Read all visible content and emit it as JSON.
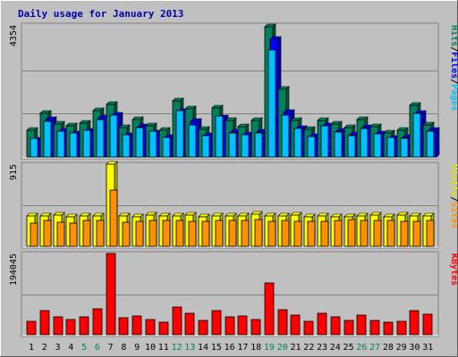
{
  "chart_data": {
    "type": "bar",
    "title": "Daily usage for January 2013",
    "days": [
      "1",
      "2",
      "3",
      "4",
      "5",
      "6",
      "7",
      "8",
      "9",
      "10",
      "11",
      "12",
      "13",
      "14",
      "15",
      "16",
      "17",
      "18",
      "19",
      "20",
      "21",
      "22",
      "23",
      "24",
      "25",
      "26",
      "27",
      "28",
      "29",
      "30",
      "31"
    ],
    "weekend_days": [
      "5",
      "6",
      "12",
      "13",
      "19",
      "20",
      "26",
      "27"
    ],
    "panels": [
      {
        "name": "pages-files-hits",
        "ymax_label": "4354",
        "ymax": 4354,
        "legend": [
          "Pages",
          "/",
          "Files",
          "/",
          "Hits"
        ],
        "series": [
          {
            "name": "Hits",
            "color": "#00805c",
            "values": [
              890,
              1470,
              1100,
              1050,
              1130,
              1560,
              1750,
              990,
              1250,
              1040,
              880,
              1880,
              1600,
              910,
              1640,
              1220,
              1020,
              1210,
              4354,
              2270,
              1230,
              930,
              1210,
              1100,
              990,
              1240,
              1010,
              800,
              900,
              1720,
              1070
            ]
          },
          {
            "name": "Files",
            "color": "#0000ff",
            "values": [
              570,
              1250,
              850,
              770,
              870,
              1300,
              1400,
              720,
              1000,
              820,
              650,
              1520,
              1180,
              730,
              1320,
              830,
              740,
              830,
              3930,
              1500,
              950,
              690,
              1050,
              850,
              760,
              990,
              780,
              630,
              660,
              1460,
              880
            ]
          },
          {
            "name": "Pages",
            "color": "#00c0ff",
            "values": [
              640,
              1190,
              860,
              800,
              880,
              1250,
              1390,
              760,
              990,
              870,
              660,
              1560,
              1080,
              730,
              1380,
              820,
              740,
              820,
              3590,
              1410,
              960,
              690,
              1040,
              840,
              710,
              940,
              780,
              650,
              640,
              1460,
              860
            ]
          }
        ]
      },
      {
        "name": "visits-sites",
        "ymax_label": "915",
        "ymax": 915,
        "legend": [
          "Sites",
          "/",
          "Visits"
        ],
        "series": [
          {
            "name": "Visits",
            "color": "#ffff00",
            "values": [
              338,
              340,
              345,
              330,
              340,
              340,
              915,
              335,
              330,
              345,
              340,
              340,
              345,
              330,
              340,
              335,
              340,
              355,
              335,
              340,
              345,
              330,
              340,
              330,
              330,
              340,
              345,
              330,
              345,
              340,
              340
            ]
          },
          {
            "name": "Sites",
            "color": "#ff9000",
            "values": [
              259,
              291,
              273,
              263,
              284,
              285,
              625,
              264,
              276,
              289,
              284,
              288,
              281,
              279,
              286,
              291,
              288,
              300,
              281,
              289,
              282,
              283,
              282,
              284,
              294,
              292,
              285,
              292,
              283,
              280,
              286
            ]
          }
        ]
      },
      {
        "name": "kbytes",
        "ymax_label": "194045",
        "ymax": 194045,
        "legend": [
          "KBytes"
        ],
        "series": [
          {
            "name": "KBytes",
            "color": "#ff0000",
            "values": [
              32000,
              58000,
              43000,
              36000,
              43000,
              62000,
              194045,
              41000,
              44000,
              37000,
              29000,
              67000,
              51000,
              34000,
              58000,
              42000,
              44000,
              37000,
              123000,
              60000,
              47000,
              33000,
              52000,
              42000,
              34000,
              47000,
              35000,
              30000,
              32000,
              58000,
              48000
            ]
          }
        ]
      }
    ],
    "colors": {
      "background": "#c0c0c0",
      "frame_dark": "#808080",
      "title": "#0000b0",
      "hits": "#00805c",
      "files": "#0000ff",
      "pages": "#00c0ff",
      "visits": "#e0e000",
      "sites": "#ff9000",
      "kbytes": "#ff0000",
      "weekend_label": "#00805c",
      "weekday_label": "#000000"
    }
  }
}
